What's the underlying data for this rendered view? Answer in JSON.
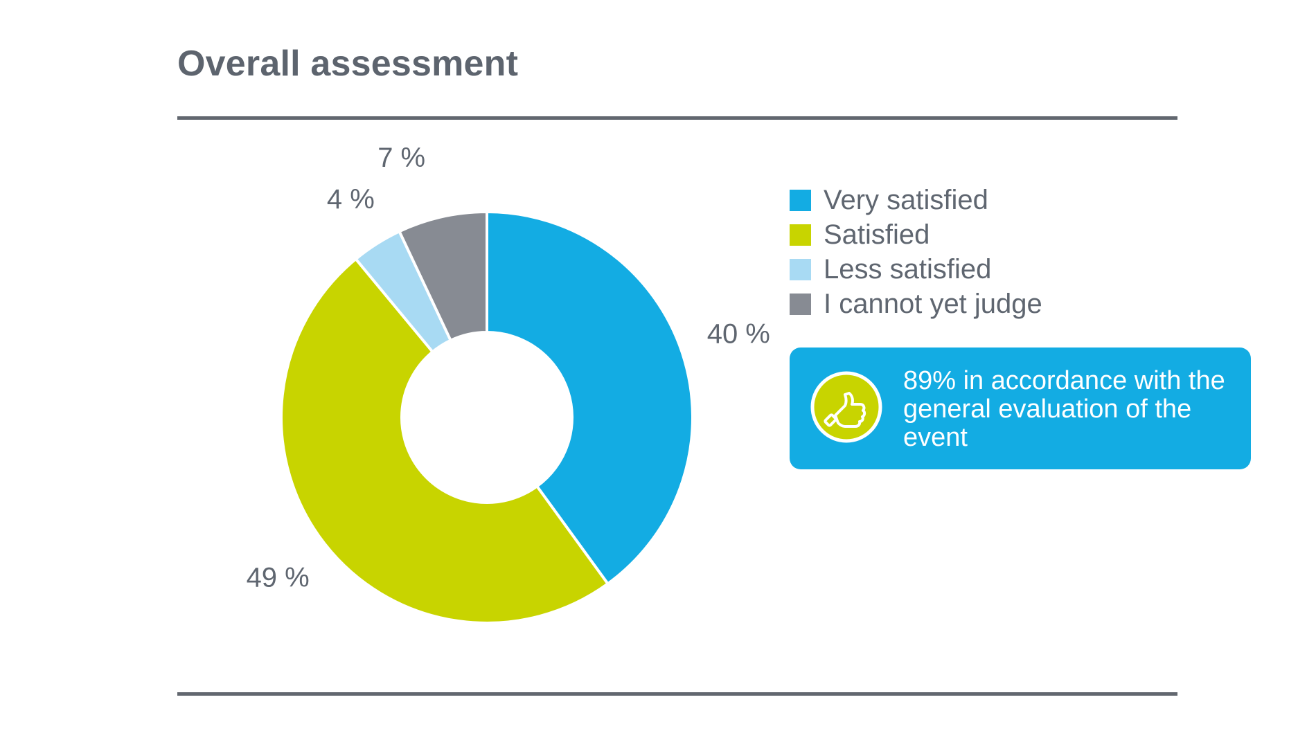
{
  "header": {
    "title": "Overall assessment"
  },
  "chart_data": {
    "type": "pie",
    "variant": "donut",
    "title": "Overall assessment",
    "unit": "%",
    "slices": [
      {
        "label": "Very satisfied",
        "value": 40,
        "display": "40 %",
        "color": "#13ace3"
      },
      {
        "label": "Satisfied",
        "value": 49,
        "display": "49 %",
        "color": "#c8d400"
      },
      {
        "label": "Less satisfied",
        "value": 4,
        "display": "4 %",
        "color": "#a8daf3"
      },
      {
        "label": "I cannot yet judge",
        "value": 7,
        "display": "7 %",
        "color": "#878b93"
      }
    ],
    "start_angle_deg": 0,
    "direction": "clockwise",
    "legend_position": "right"
  },
  "callout": {
    "icon": "thumbs-up-icon",
    "text": "89% in accordance with the general evaluation of the event",
    "background": "#13ace3",
    "icon_color": "#c8d400"
  }
}
